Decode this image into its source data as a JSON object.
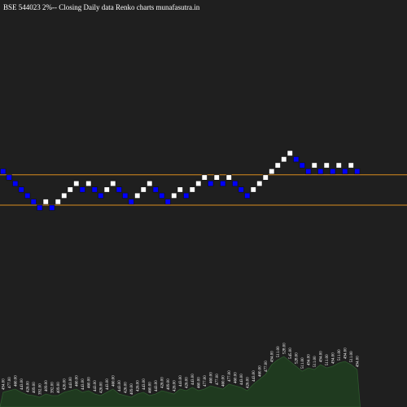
{
  "chart_data": {
    "type": "renko",
    "title": "BSE 544023 2%-- Closing Daily data Renko charts munafasutra.in",
    "values": [
      494,
      477,
      460,
      443,
      426,
      409,
      392,
      409,
      392,
      409,
      426,
      443,
      460,
      443,
      460,
      443,
      426,
      443,
      460,
      443,
      426,
      409,
      426,
      443,
      460,
      443,
      426,
      409,
      426,
      443,
      426,
      443,
      460,
      477,
      460,
      477,
      460,
      477,
      460,
      443,
      426,
      443,
      460,
      477,
      494,
      511,
      528,
      545,
      528,
      511,
      494,
      511,
      494,
      511,
      494,
      511,
      494,
      511,
      494
    ],
    "value_labels": [
      "494.00",
      "477.00",
      "460.00",
      "443.00",
      "426.00",
      "409.00",
      "392.00",
      "409.00",
      "392.00",
      "409.00",
      "426.00",
      "443.00",
      "460.00",
      "443.00",
      "460.00",
      "443.00",
      "426.00",
      "443.00",
      "460.00",
      "443.00",
      "426.00",
      "409.00",
      "426.00",
      "443.00",
      "460.00",
      "443.00",
      "426.00",
      "409.00",
      "426.00",
      "443.00",
      "426.00",
      "443.00",
      "460.00",
      "477.00",
      "460.00",
      "477.00",
      "460.00",
      "477.00",
      "460.00",
      "443.00",
      "426.00",
      "443.00",
      "460.00",
      "477.00",
      "494.00",
      "511.00",
      "528.00",
      "545.00",
      "528.00",
      "511.00",
      "494.00",
      "511.00",
      "494.00",
      "511.00",
      "494.00",
      "511.00",
      "494.00",
      "511.00",
      "494.00"
    ],
    "volumes": [
      18,
      20,
      22,
      18,
      15,
      14,
      12,
      16,
      14,
      14,
      18,
      20,
      22,
      18,
      20,
      16,
      14,
      18,
      22,
      16,
      14,
      12,
      16,
      18,
      14,
      16,
      20,
      18,
      16,
      22,
      20,
      24,
      20,
      22,
      26,
      24,
      22,
      28,
      26,
      24,
      20,
      28,
      34,
      40,
      52,
      58,
      62,
      56,
      50,
      44,
      48,
      46,
      52,
      48,
      50,
      54,
      56,
      52,
      46
    ],
    "reference_lines": [
      477,
      409
    ],
    "up_color": "#ffffff",
    "down_color": "#0000ff",
    "line_color": "#d98c1f",
    "volume_color": "#1f3a1f"
  }
}
